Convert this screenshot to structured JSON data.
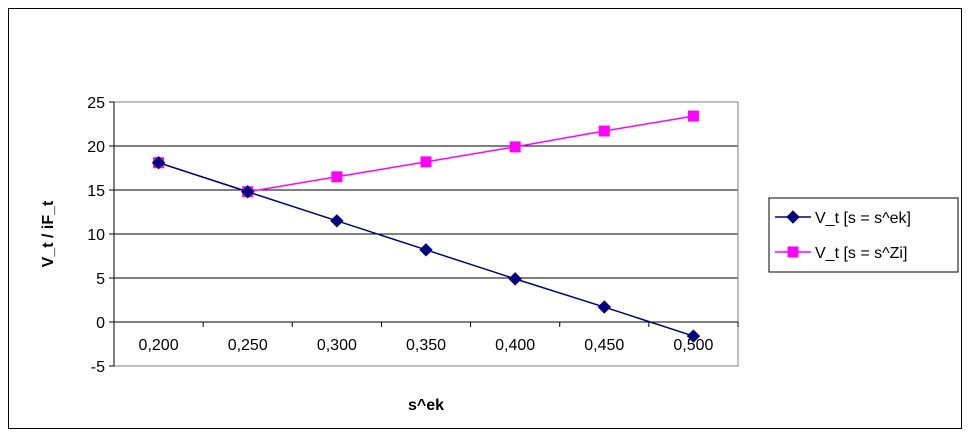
{
  "chart_data": {
    "type": "line",
    "title": "",
    "xlabel": "s^ek",
    "ylabel": "V_t / iF_t",
    "categories": [
      "0,200",
      "0,250",
      "0,300",
      "0,350",
      "0,400",
      "0,450",
      "0,500"
    ],
    "y_ticks": [
      "-5",
      "0",
      "5",
      "10",
      "15",
      "20",
      "25"
    ],
    "ylim": [
      -5,
      25
    ],
    "y_step": 5,
    "grid": "horizontal major gridlines",
    "legend_position": "right",
    "series": [
      {
        "name": "V_t [s = s^ek]",
        "values": [
          18.1,
          14.8,
          11.5,
          8.2,
          4.9,
          1.7,
          -1.6
        ],
        "color": "#000080",
        "marker": "diamond"
      },
      {
        "name": "V_t [s = s^Zi]",
        "values": [
          18.1,
          14.8,
          16.5,
          18.2,
          19.9,
          21.7,
          23.4
        ],
        "color": "#FF00FF",
        "marker": "square"
      }
    ]
  }
}
